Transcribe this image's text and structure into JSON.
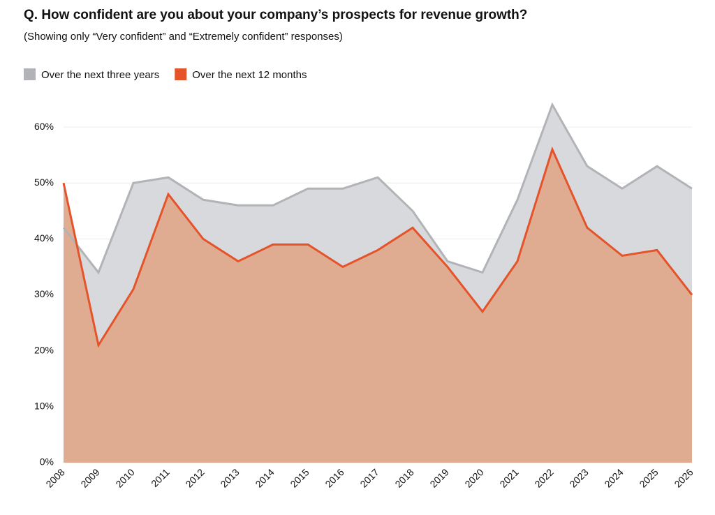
{
  "chart_data": {
    "type": "area",
    "title": "Q. How confident are you about your company’s prospects for revenue growth?",
    "subtitle": "(Showing only “Very confident” and “Extremely confident” responses)",
    "categories": [
      "2008",
      "2009",
      "2010",
      "2011",
      "2012",
      "2013",
      "2014",
      "2015",
      "2016",
      "2017",
      "2018",
      "2019",
      "2020",
      "2021",
      "2022",
      "2023",
      "2024",
      "2025",
      "2026"
    ],
    "series": [
      {
        "name": "Over the next three years",
        "color": "#b1b3b6",
        "values": [
          42,
          34,
          50,
          51,
          47,
          46,
          46,
          49,
          49,
          51,
          45,
          36,
          34,
          47,
          64,
          53,
          49,
          53,
          49
        ]
      },
      {
        "name": "Over the next 12 months",
        "color": "#e4532a",
        "values": [
          50,
          21,
          31,
          48,
          40,
          36,
          39,
          39,
          35,
          38,
          42,
          35,
          27,
          36,
          56,
          42,
          37,
          38,
          30
        ]
      }
    ],
    "ylim": [
      0,
      65
    ],
    "yticks": [
      {
        "value": 0,
        "label": "0%"
      },
      {
        "value": 10,
        "label": "10%"
      },
      {
        "value": 20,
        "label": "20%"
      },
      {
        "value": 30,
        "label": "30%"
      },
      {
        "value": 40,
        "label": "40%"
      },
      {
        "value": 50,
        "label": "50%"
      },
      {
        "value": 60,
        "label": "60%"
      }
    ],
    "grid": true
  }
}
